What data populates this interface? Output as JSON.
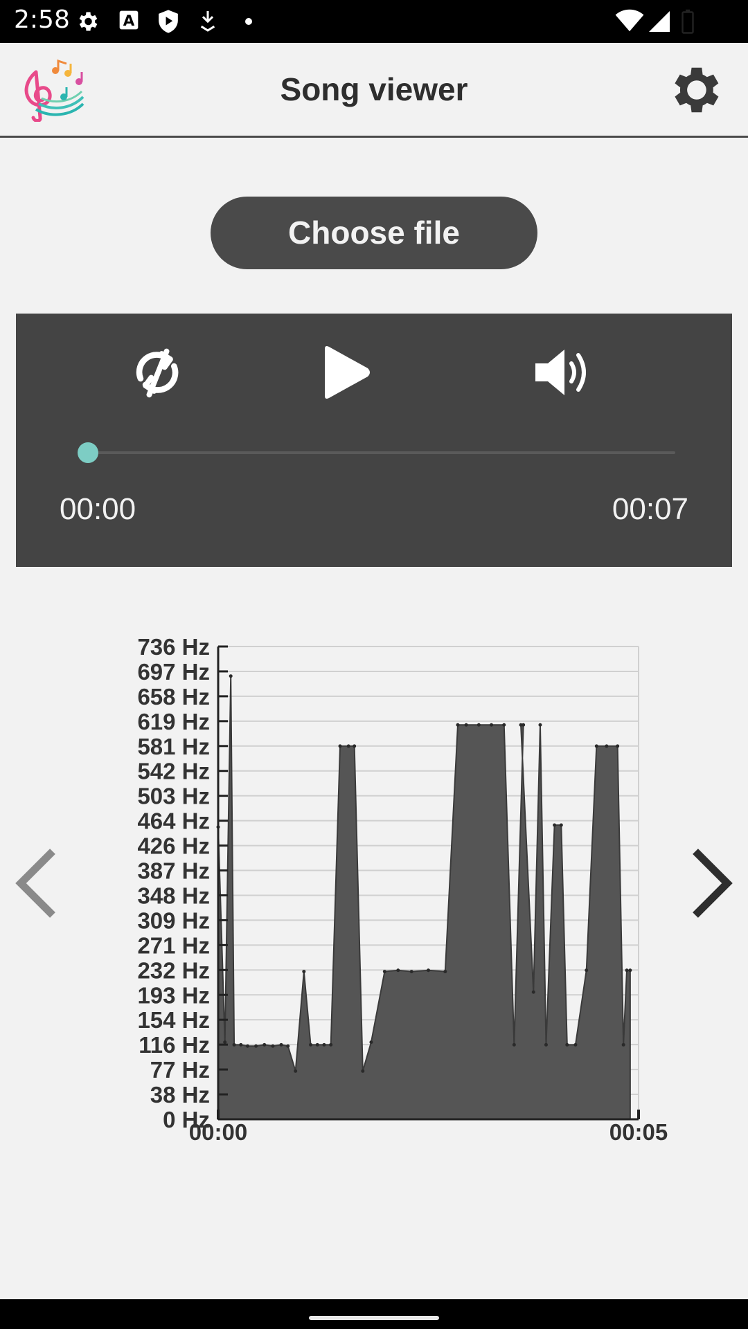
{
  "status_bar": {
    "time": "2:58",
    "icons": [
      "settings-gear-icon",
      "font-a-icon",
      "shield-play-icon",
      "download-icon",
      "dot-icon",
      "wifi-icon",
      "signal-icon",
      "battery-icon"
    ]
  },
  "app_bar": {
    "title": "Song viewer",
    "logo_icon": "music-notes-logo",
    "settings_icon": "gear-icon"
  },
  "choose_file": {
    "label": "Choose file"
  },
  "player": {
    "shuffle_icon": "shuffle-off-icon",
    "play_icon": "play-icon",
    "volume_icon": "volume-icon",
    "position": 0,
    "current_time": "00:00",
    "total_time": "00:07",
    "accent_color": "#7dcdc4"
  },
  "chart_data": {
    "type": "area",
    "title": "",
    "xlabel": "",
    "ylabel": "",
    "y_tick_labels": [
      "0 Hz",
      "38 Hz",
      "77 Hz",
      "116 Hz",
      "154 Hz",
      "193 Hz",
      "232 Hz",
      "271 Hz",
      "309 Hz",
      "348 Hz",
      "387 Hz",
      "426 Hz",
      "464 Hz",
      "503 Hz",
      "542 Hz",
      "581 Hz",
      "619 Hz",
      "658 Hz",
      "697 Hz",
      "736 Hz"
    ],
    "x_tick_labels": [
      "00:00",
      "00:05"
    ],
    "xlim": [
      0,
      5
    ],
    "ylim": [
      0,
      736
    ],
    "grid": true,
    "fill_color": "#555555",
    "series": [
      {
        "x": [
          0,
          0.08,
          0.15,
          0.19,
          0.27,
          0.35,
          0.45,
          0.55,
          0.65,
          0.75,
          0.83,
          0.92,
          1.02,
          1.1,
          1.18,
          1.26,
          1.34,
          1.45,
          1.55,
          1.62,
          1.72,
          1.82,
          1.98,
          2.14,
          2.3,
          2.5,
          2.7,
          2.85,
          2.95,
          3.1,
          3.25,
          3.4,
          3.52,
          3.63,
          3.6,
          3.75,
          3.83,
          3.9,
          4.0,
          4.08,
          4.15,
          4.25,
          4.38,
          4.5,
          4.62,
          4.75,
          4.82,
          4.86,
          4.9
        ],
        "y": [
          455,
          120,
          690,
          116,
          116,
          114,
          114,
          116,
          114,
          116,
          114,
          75,
          230,
          116,
          116,
          116,
          116,
          581,
          581,
          581,
          75,
          120,
          230,
          232,
          230,
          232,
          230,
          614,
          614,
          614,
          614,
          614,
          116,
          614,
          614,
          198,
          614,
          116,
          458,
          458,
          116,
          116,
          232,
          581,
          581,
          581,
          116,
          232,
          232
        ]
      }
    ]
  },
  "navigation": {
    "prev_icon": "chevron-left-icon",
    "next_icon": "chevron-right-icon"
  }
}
